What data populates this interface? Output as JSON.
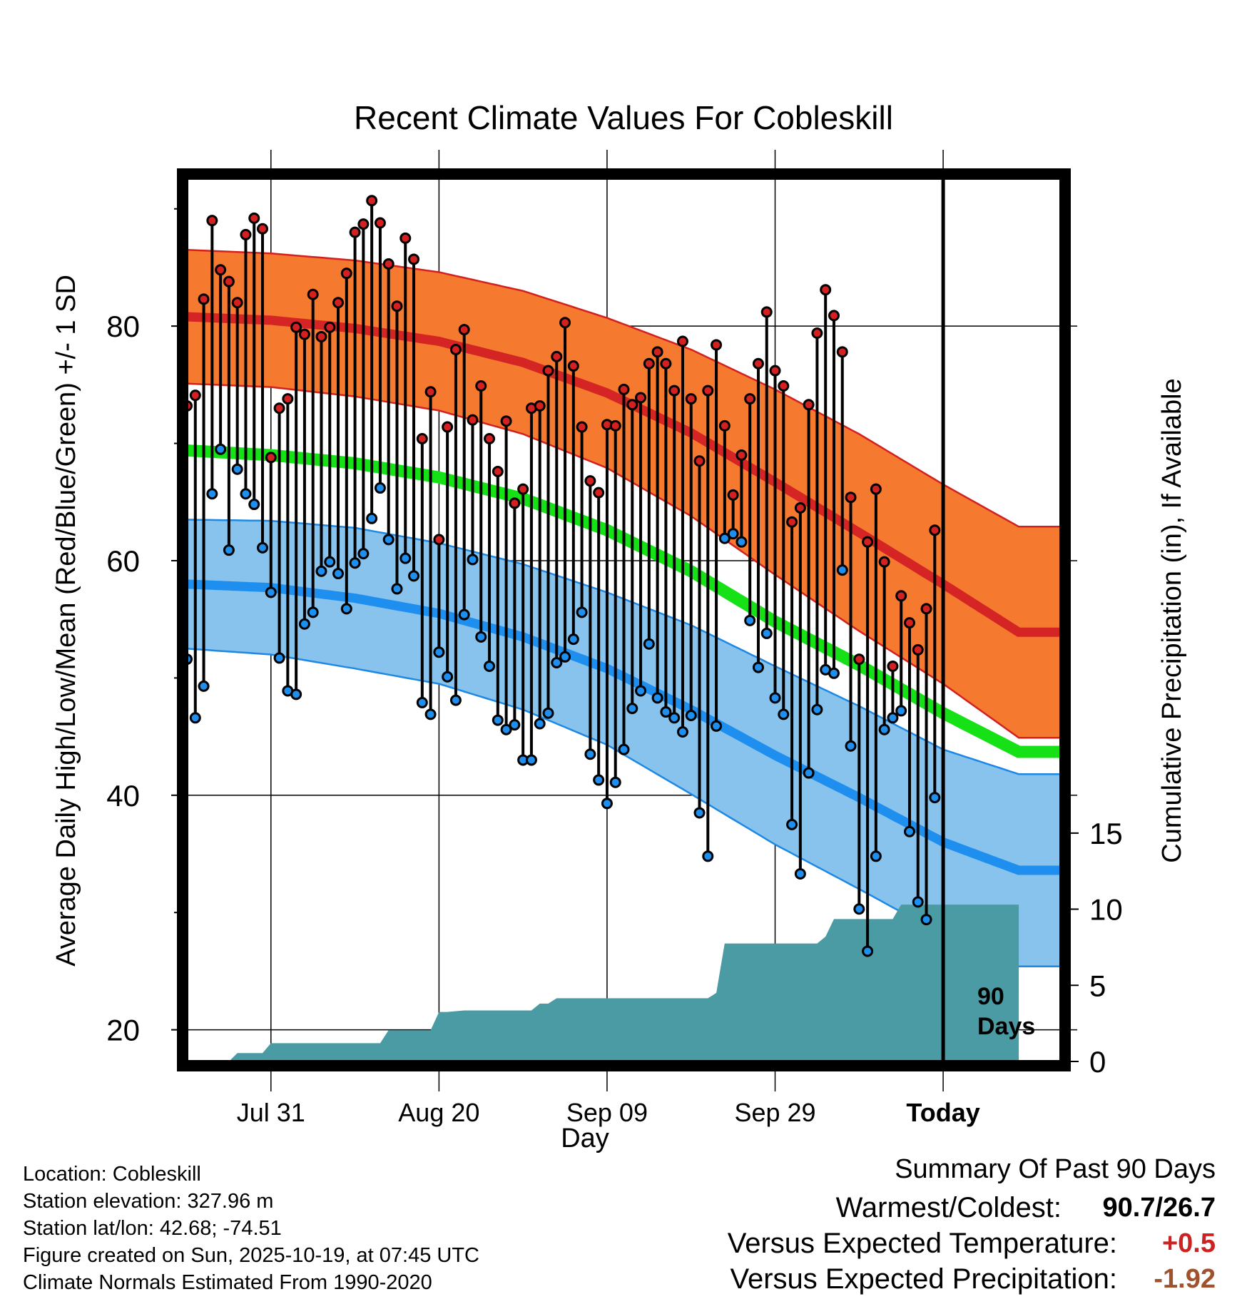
{
  "chart_data": {
    "type": "line",
    "title": "Recent Climate Values For Cobleskill",
    "xlabel": "Day",
    "ylabel_left": "Average Daily High/Low/Mean (Red/Blue/Green) +/- 1 SD",
    "ylabel_right": "Cumulative Precipitation (in), If Available",
    "x_range_days": [
      -89,
      15
    ],
    "x_ticks": [
      {
        "day": -79,
        "label": "Jul 31"
      },
      {
        "day": -59,
        "label": "Aug 20"
      },
      {
        "day": -39,
        "label": "Sep 09"
      },
      {
        "day": -19,
        "label": "Sep 29"
      },
      {
        "day": 1,
        "label": "Today"
      }
    ],
    "ylim_left": [
      17.3,
      92.6
    ],
    "y_ticks_left": [
      20,
      40,
      60,
      80
    ],
    "ylim_right": [
      0,
      58
    ],
    "y_ticks_right": [
      0,
      5,
      10,
      15
    ],
    "today_marker_label": [
      "90",
      "Days"
    ],
    "normals": {
      "days": [
        -89,
        -79,
        -69,
        -59,
        -49,
        -39,
        -29,
        -19,
        -9,
        1,
        10
      ],
      "high_mean": [
        80.8,
        80.5,
        79.8,
        78.7,
        76.9,
        74.3,
        70.9,
        66.7,
        62.4,
        58.0,
        53.9
      ],
      "high_sd": [
        5.7,
        5.7,
        5.8,
        5.9,
        6.1,
        6.4,
        7.1,
        7.9,
        8.4,
        8.5,
        9.0
      ],
      "low_mean": [
        58.0,
        57.7,
        56.8,
        55.5,
        53.5,
        50.8,
        47.3,
        43.4,
        39.8,
        36.0,
        33.6
      ],
      "low_sd": [
        5.5,
        5.7,
        6.0,
        6.0,
        6.2,
        6.5,
        7.2,
        7.6,
        7.8,
        7.9,
        8.2
      ],
      "avg_mean": [
        69.4,
        69.0,
        68.3,
        67.1,
        65.3,
        62.6,
        59.1,
        54.8,
        51.1,
        47.0,
        43.7
      ]
    },
    "daily": {
      "start_day": -89,
      "highs": [
        73.2,
        74.1,
        82.3,
        89.0,
        84.8,
        83.8,
        82.0,
        87.8,
        89.2,
        88.3,
        68.8,
        73.0,
        73.8,
        79.9,
        79.3,
        82.7,
        79.1,
        79.9,
        82.0,
        84.5,
        88.0,
        88.7,
        90.7,
        88.8,
        85.3,
        81.7,
        87.5,
        85.7,
        70.4,
        74.4,
        61.8,
        71.4,
        78.0,
        79.7,
        72.0,
        74.9,
        70.4,
        67.6,
        71.9,
        64.9,
        66.1,
        73.0,
        73.2,
        76.2,
        77.4,
        80.3,
        76.6,
        71.4,
        66.8,
        65.8,
        71.6,
        71.5,
        74.6,
        73.3,
        73.9,
        76.8,
        77.8,
        76.8,
        74.5,
        78.7,
        73.8,
        68.5,
        74.5,
        78.4,
        71.5,
        65.6,
        69.0,
        73.8,
        76.8,
        81.2,
        76.2,
        74.9,
        63.3,
        64.5,
        73.3,
        79.4,
        83.1,
        80.9,
        77.8,
        65.4,
        51.6,
        61.6,
        66.1,
        59.9,
        51.0,
        57.0,
        54.7,
        52.4,
        55.9,
        62.6
      ],
      "lows": [
        51.6,
        46.6,
        49.3,
        65.7,
        69.5,
        60.9,
        67.8,
        65.7,
        64.8,
        61.1,
        57.3,
        51.7,
        48.9,
        48.6,
        54.6,
        55.6,
        59.1,
        59.9,
        58.9,
        55.9,
        59.8,
        60.6,
        63.6,
        66.2,
        61.8,
        57.6,
        60.2,
        58.7,
        47.9,
        46.9,
        52.2,
        50.1,
        48.1,
        55.4,
        60.1,
        53.5,
        51.0,
        46.4,
        45.6,
        46.0,
        43.0,
        43.0,
        46.1,
        47.0,
        51.3,
        51.8,
        53.3,
        55.6,
        43.5,
        41.3,
        39.3,
        41.1,
        43.9,
        47.4,
        48.9,
        52.9,
        48.3,
        47.1,
        46.6,
        45.4,
        46.8,
        38.5,
        34.8,
        45.9,
        61.9,
        62.3,
        61.6,
        54.9,
        50.9,
        53.8,
        48.3,
        46.9,
        37.5,
        33.3,
        41.9,
        47.3,
        50.7,
        50.4,
        59.2,
        44.2,
        30.3,
        26.7,
        34.8,
        45.6,
        46.6,
        47.2,
        36.9,
        30.9,
        29.4,
        39.8
      ]
    },
    "precip_cumulative": {
      "days": [
        -89,
        -84,
        -83,
        -80,
        -79,
        -78,
        -77,
        -76,
        -66,
        -65,
        -60,
        -59,
        -58,
        -56,
        -48,
        -47,
        -46,
        -45,
        -44,
        -43,
        -42,
        -27,
        -26,
        -25,
        -24,
        -23,
        -14,
        -13,
        -12,
        -11,
        -10,
        -5,
        -4,
        -3,
        10
      ],
      "values": [
        0,
        0,
        0.55,
        0.55,
        1.2,
        1.2,
        1.2,
        1.2,
        1.2,
        2.05,
        2.05,
        3.25,
        3.25,
        3.35,
        3.35,
        3.8,
        3.8,
        4.15,
        4.15,
        4.15,
        4.15,
        4.15,
        4.5,
        7.75,
        7.75,
        7.75,
        7.75,
        8.2,
        9.35,
        9.35,
        9.35,
        9.35,
        10.3,
        10.3,
        10.3
      ]
    }
  },
  "footer": {
    "location": "Location: Cobleskill",
    "elevation": "Station elevation: 327.96 m",
    "latlon": "Station lat/lon: 42.68; -74.51",
    "created": "Figure created on Sun, 2025-10-19, at 07:45 UTC",
    "normals": "Climate Normals Estimated From 1990-2020"
  },
  "summary": {
    "heading": "Summary Of Past 90 Days",
    "warmest_label": "Warmest/Coldest:",
    "warmest_value": "90.7/26.7",
    "temp_label": "Versus Expected Temperature:",
    "temp_value": "+0.5",
    "precip_label": "Versus Expected Precipitation:",
    "precip_value": "-1.92",
    "colors": {
      "temp_value": "#cc2222",
      "precip_value": "#a0522d"
    }
  },
  "colors": {
    "high_band": "#f57a30",
    "high_line": "#d42424",
    "high_edge": "#d32020",
    "low_band": "#87c3ec",
    "low_line": "#1f8fef",
    "low_edge": "#1e88e5",
    "mean_line": "#16e016",
    "precip": "#4a9ba4",
    "high_dot": "#d42020",
    "low_dot": "#1f8fef"
  }
}
